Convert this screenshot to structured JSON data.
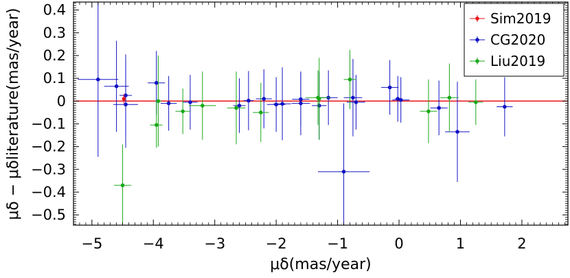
{
  "chart_data": {
    "type": "scatter",
    "xlabel": "μδ(mas/year)",
    "ylabel": "μδ − μδliterature(mas/year)",
    "xlim": [
      -5.3,
      2.75
    ],
    "ylim": [
      -0.545,
      0.435
    ],
    "xticks": [
      -5,
      -4,
      -3,
      -2,
      -1,
      0,
      1,
      2
    ],
    "xtick_labels": [
      "−5",
      "−4",
      "−3",
      "−2",
      "−1",
      "0",
      "1",
      "2"
    ],
    "yticks": [
      0.4,
      0.3,
      0.2,
      0.1,
      0,
      -0.1,
      -0.2,
      -0.3,
      -0.4,
      -0.5
    ],
    "ytick_labels": [
      "0.4",
      "0.3",
      "0.2",
      "0.1",
      "0",
      "−0.1",
      "−0.2",
      "−0.3",
      "−0.4",
      "−0.5"
    ],
    "reference_line": {
      "y": 0,
      "color": "#e8141a"
    },
    "legend_position": "top-right",
    "grid": false,
    "series": [
      {
        "name": "Sim2019",
        "color": "#e8141a",
        "points": [
          {
            "x": -4.48,
            "y": 0.01,
            "xerr": 0.03,
            "yerr": 0.02
          }
        ]
      },
      {
        "name": "CG2020",
        "color": "#1212c4",
        "points": [
          {
            "x": -4.9,
            "y": 0.095,
            "xerr": 0.33,
            "yerr": 0.34
          },
          {
            "x": -4.6,
            "y": 0.065,
            "xerr": 0.2,
            "yerr": 0.2
          },
          {
            "x": -4.45,
            "y": 0.025,
            "xerr": 0.1,
            "yerr": 0.18
          },
          {
            "x": -4.45,
            "y": -0.015,
            "xerr": 0.2,
            "yerr": 0.19
          },
          {
            "x": -3.95,
            "y": 0.08,
            "xerr": 0.14,
            "yerr": 0.14
          },
          {
            "x": -3.75,
            "y": -0.01,
            "xerr": 0.13,
            "yerr": 0.12
          },
          {
            "x": -3.4,
            "y": -0.005,
            "xerr": 0.12,
            "yerr": 0.12
          },
          {
            "x": -2.6,
            "y": -0.02,
            "xerr": 0.1,
            "yerr": 0.12
          },
          {
            "x": -2.45,
            "y": 0.002,
            "xerr": 0.08,
            "yerr": 0.13
          },
          {
            "x": -2.2,
            "y": 0.01,
            "xerr": 0.13,
            "yerr": 0.13
          },
          {
            "x": -2.0,
            "y": -0.015,
            "xerr": 0.15,
            "yerr": 0.12
          },
          {
            "x": -1.9,
            "y": -0.012,
            "xerr": 0.14,
            "yerr": 0.16
          },
          {
            "x": -1.6,
            "y": 0.008,
            "xerr": 0.14,
            "yerr": 0.12
          },
          {
            "x": -1.6,
            "y": -0.01,
            "xerr": 0.15,
            "yerr": 0.14
          },
          {
            "x": -1.3,
            "y": -0.02,
            "xerr": 0.12,
            "yerr": 0.15
          },
          {
            "x": -1.15,
            "y": 0.015,
            "xerr": 0.15,
            "yerr": 0.12
          },
          {
            "x": -0.9,
            "y": -0.31,
            "xerr": 0.42,
            "yerr": 0.3
          },
          {
            "x": -0.75,
            "y": 0.015,
            "xerr": 0.15,
            "yerr": 0.17
          },
          {
            "x": -0.7,
            "y": -0.005,
            "xerr": 0.15,
            "yerr": 0.12
          },
          {
            "x": -0.15,
            "y": 0.06,
            "xerr": 0.14,
            "yerr": 0.12
          },
          {
            "x": -0.02,
            "y": 0.01,
            "xerr": 0.05,
            "yerr": 0.1
          },
          {
            "x": 0.03,
            "y": 0.005,
            "xerr": 0.14,
            "yerr": 0.1
          },
          {
            "x": 0.65,
            "y": -0.03,
            "xerr": 0.14,
            "yerr": 0.12
          },
          {
            "x": 0.95,
            "y": -0.135,
            "xerr": 0.2,
            "yerr": 0.22
          },
          {
            "x": 1.72,
            "y": -0.025,
            "xerr": 0.13,
            "yerr": 0.13
          }
        ]
      },
      {
        "name": "Liu2019",
        "color": "#1aa81a",
        "points": [
          {
            "x": -4.5,
            "y": -0.37,
            "xerr": 0.14,
            "yerr": 0.18
          },
          {
            "x": -3.95,
            "y": -0.105,
            "xerr": 0.1,
            "yerr": 0.1
          },
          {
            "x": -3.92,
            "y": 0.0,
            "xerr": 0.05,
            "yerr": 0.2
          },
          {
            "x": -3.52,
            "y": -0.045,
            "xerr": 0.12,
            "yerr": 0.1
          },
          {
            "x": -3.2,
            "y": -0.02,
            "xerr": 0.22,
            "yerr": 0.15
          },
          {
            "x": -2.65,
            "y": -0.03,
            "xerr": 0.15,
            "yerr": 0.16
          },
          {
            "x": -2.25,
            "y": -0.05,
            "xerr": 0.13,
            "yerr": 0.13
          },
          {
            "x": -1.32,
            "y": 0.015,
            "xerr": 0.2,
            "yerr": 0.12
          },
          {
            "x": -1.3,
            "y": 0.01,
            "xerr": 0.03,
            "yerr": 0.18
          },
          {
            "x": -0.8,
            "y": 0.095,
            "xerr": 0.1,
            "yerr": 0.13
          },
          {
            "x": 0.48,
            "y": -0.045,
            "xerr": 0.14,
            "yerr": 0.14
          },
          {
            "x": 0.82,
            "y": 0.015,
            "xerr": 0.15,
            "yerr": 0.15
          },
          {
            "x": 1.25,
            "y": -0.005,
            "xerr": 0.12,
            "yerr": 0.1
          }
        ]
      }
    ]
  }
}
